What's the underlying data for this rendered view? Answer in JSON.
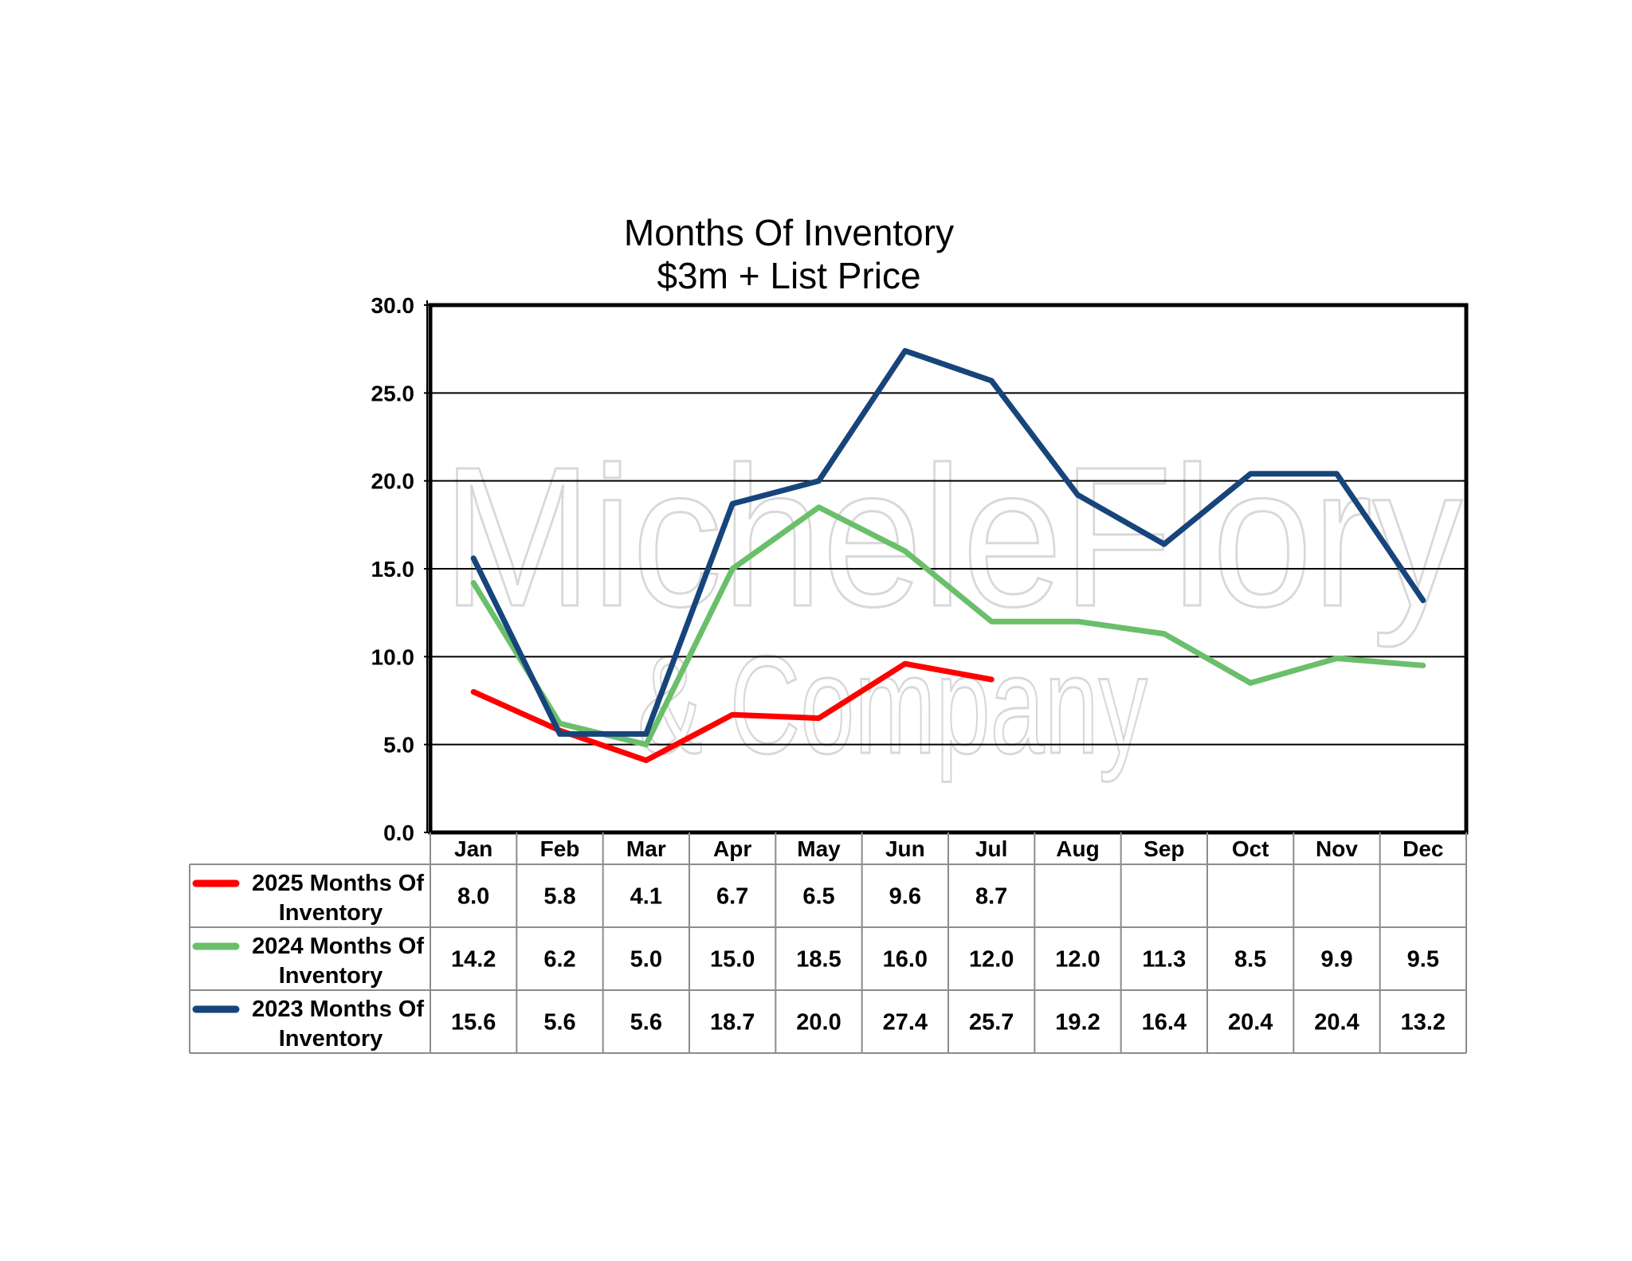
{
  "chart_data": {
    "type": "line",
    "title": "Months Of Inventory",
    "subtitle": "$3m + List Price",
    "categories": [
      "Jan",
      "Feb",
      "Mar",
      "Apr",
      "May",
      "Jun",
      "Jul",
      "Aug",
      "Sep",
      "Oct",
      "Nov",
      "Dec"
    ],
    "ylim": [
      0,
      30
    ],
    "yticks": [
      "0.0",
      "5.0",
      "10.0",
      "15.0",
      "20.0",
      "25.0",
      "30.0"
    ],
    "grid": true,
    "legend": "data-table",
    "series": [
      {
        "name_line1": "2025 Months Of",
        "name_line2": "Inventory",
        "color": "#ff0000",
        "values": [
          8.0,
          5.8,
          4.1,
          6.7,
          6.5,
          9.6,
          8.7,
          null,
          null,
          null,
          null,
          null
        ],
        "labels": [
          "8.0",
          "5.8",
          "4.1",
          "6.7",
          "6.5",
          "9.6",
          "8.7",
          "",
          "",
          "",
          "",
          ""
        ]
      },
      {
        "name_line1": "2024 Months Of",
        "name_line2": "Inventory",
        "color": "#6abf6a",
        "values": [
          14.2,
          6.2,
          5.0,
          15.0,
          18.5,
          16.0,
          12.0,
          12.0,
          11.3,
          8.5,
          9.9,
          9.5
        ],
        "labels": [
          "14.2",
          "6.2",
          "5.0",
          "15.0",
          "18.5",
          "16.0",
          "12.0",
          "12.0",
          "11.3",
          "8.5",
          "9.9",
          "9.5"
        ]
      },
      {
        "name_line1": "2023 Months Of",
        "name_line2": "Inventory",
        "color": "#17447a",
        "values": [
          15.6,
          5.6,
          5.6,
          18.7,
          20.0,
          27.4,
          25.7,
          19.2,
          16.4,
          20.4,
          20.4,
          13.2
        ],
        "labels": [
          "15.6",
          "5.6",
          "5.6",
          "18.7",
          "20.0",
          "27.4",
          "25.7",
          "19.2",
          "16.4",
          "20.4",
          "20.4",
          "13.2"
        ]
      }
    ]
  },
  "watermark": {
    "line1": "MicheleFlory",
    "line2": "& Company"
  }
}
